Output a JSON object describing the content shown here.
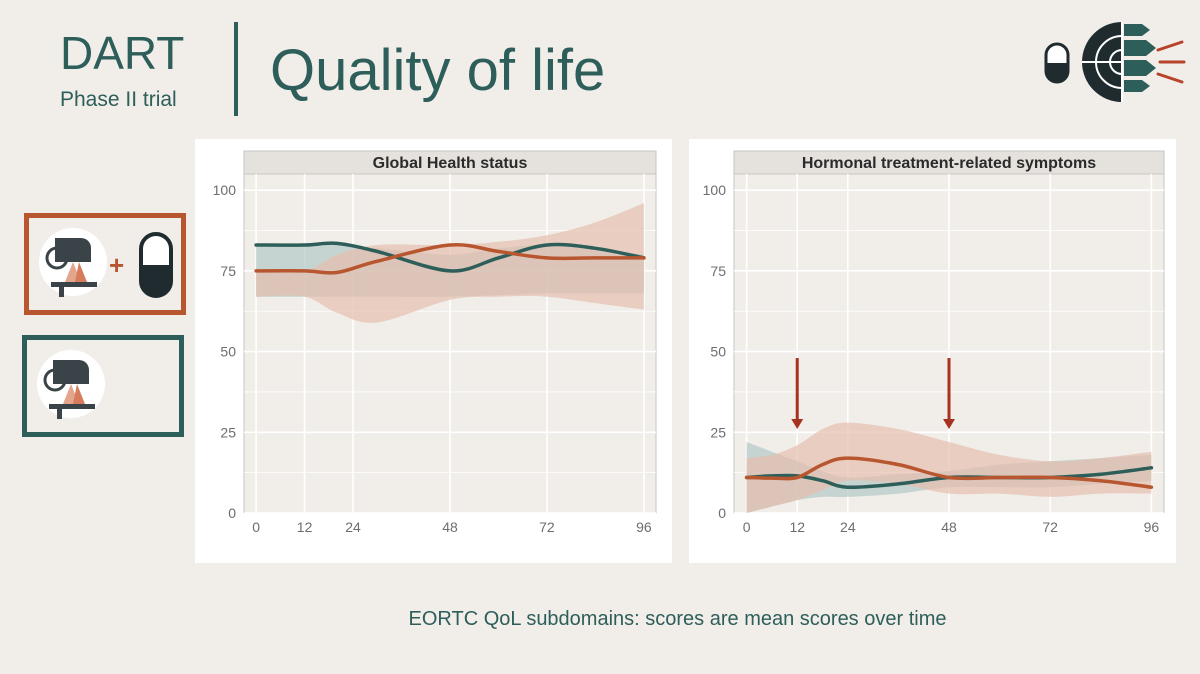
{
  "header": {
    "trial_name": "DART",
    "trial_phase": "Phase II trial",
    "slide_title": "Quality of life"
  },
  "legend": {
    "combo_plus_symbol": "+"
  },
  "caption": "EORTC QoL subdomains: scores are mean scores over time",
  "colors": {
    "orange": "#b8562f",
    "teal": "#2e5e5a",
    "orange_band": "#e6bfae",
    "teal_band": "#b2c9c6",
    "dark": "#1f2b2e"
  },
  "icons": [
    "pill-icon",
    "radiotherapy-machine-icon",
    "spine-target-icon"
  ],
  "chart_data": [
    {
      "type": "line",
      "title": "Global Health status",
      "xlabel": "",
      "ylabel": "",
      "x_ticks": [
        0,
        12,
        24,
        48,
        72,
        96
      ],
      "y_ticks": [
        0,
        25,
        50,
        75,
        100
      ],
      "xlim": [
        -3,
        99
      ],
      "ylim": [
        0,
        105
      ],
      "grid": true,
      "series": [
        {
          "color": "#2e5e5a",
          "x": [
            0,
            12,
            20,
            30,
            48,
            60,
            72,
            84,
            96
          ],
          "y": [
            83,
            83,
            83.5,
            81,
            75,
            79,
            83,
            82,
            79
          ],
          "band_upper": [
            83,
            83,
            83.5,
            82,
            80,
            82,
            83,
            82,
            80
          ],
          "band_lower": [
            67,
            67,
            67,
            67,
            67,
            67.5,
            68,
            68,
            68
          ]
        },
        {
          "color": "#b8562f",
          "x": [
            0,
            12,
            20,
            30,
            48,
            60,
            72,
            84,
            96
          ],
          "y": [
            75,
            75,
            74.5,
            78,
            83,
            81,
            79,
            79,
            79
          ],
          "band_upper": [
            75,
            75,
            80,
            83,
            83,
            84,
            86,
            90,
            96
          ],
          "band_lower": [
            67,
            67,
            62,
            59,
            66,
            67,
            67,
            65,
            63
          ]
        }
      ]
    },
    {
      "type": "line",
      "title": "Hormonal treatment-related symptoms",
      "xlabel": "",
      "ylabel": "",
      "x_ticks": [
        0,
        12,
        24,
        48,
        72,
        96
      ],
      "y_ticks": [
        0,
        25,
        50,
        75,
        100
      ],
      "xlim": [
        -3,
        99
      ],
      "ylim": [
        0,
        105
      ],
      "grid": true,
      "series": [
        {
          "color": "#2e5e5a",
          "x": [
            0,
            6,
            12,
            18,
            24,
            36,
            48,
            60,
            72,
            84,
            96
          ],
          "y": [
            11,
            11.5,
            11.5,
            10,
            8,
            9,
            11,
            11,
            11,
            12,
            14
          ],
          "band_upper": [
            22,
            19,
            16,
            13,
            11,
            12,
            13,
            15,
            16,
            17,
            18
          ],
          "band_lower": [
            0,
            2,
            4,
            5,
            5,
            6,
            8,
            8,
            8,
            9,
            10
          ]
        },
        {
          "color": "#b8562f",
          "x": [
            0,
            6,
            12,
            18,
            24,
            36,
            48,
            60,
            72,
            84,
            96
          ],
          "y": [
            11,
            10.8,
            11,
            15,
            17,
            15,
            11,
            11,
            11,
            10,
            8
          ],
          "band_upper": [
            17,
            18,
            21,
            26,
            28,
            26,
            22,
            18,
            16,
            17,
            19
          ],
          "band_lower": [
            0,
            2,
            4,
            7,
            10,
            9,
            6,
            6,
            5,
            6,
            6
          ]
        }
      ],
      "annotations": [
        {
          "type": "arrow-down",
          "x": 12,
          "y_from": 48,
          "y_to": 26,
          "color": "#a83220"
        },
        {
          "type": "arrow-down",
          "x": 48,
          "y_from": 48,
          "y_to": 26,
          "color": "#a83220"
        }
      ]
    }
  ]
}
